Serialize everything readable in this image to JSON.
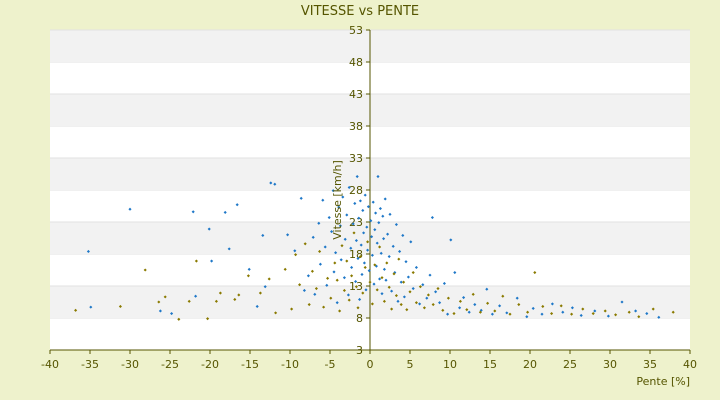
{
  "chart_data": {
    "type": "scatter",
    "title": "VITESSE vs PENTE",
    "xlabel": "Pente [%]",
    "ylabel": "Vitesse [km/h]",
    "xlim": [
      -40,
      40
    ],
    "ylim": [
      3,
      53
    ],
    "x_ticks": [
      "-40",
      "-35",
      "-30",
      "-25",
      "-20",
      "-15",
      "-10",
      "-5",
      "0",
      "5",
      "10",
      "15",
      "20",
      "25",
      "30",
      "35",
      "40"
    ],
    "y_ticks": [
      "3",
      "8",
      "13",
      "18",
      "23",
      "28",
      "33",
      "38",
      "43",
      "48",
      "53"
    ],
    "grid": "horizontal bands",
    "colors": {
      "series_a": "#1f78c8",
      "series_b": "#8a7a00",
      "background": "#eef2cc",
      "band": "#f2f2f2",
      "axis": "#555500"
    },
    "series": [
      {
        "color": "#1f78c8",
        "points": [
          [
            -35.2,
            18.4
          ],
          [
            -34.9,
            9.7
          ],
          [
            -30,
            25
          ],
          [
            -26.2,
            9.1
          ],
          [
            -24.8,
            8.7
          ],
          [
            -22.1,
            24.6
          ],
          [
            -21.8,
            11.4
          ],
          [
            -20.1,
            21.9
          ],
          [
            -19.8,
            16.9
          ],
          [
            -18.1,
            24.5
          ],
          [
            -17.6,
            18.8
          ],
          [
            -16.6,
            25.7
          ],
          [
            -15.1,
            15.6
          ],
          [
            -14.1,
            9.8
          ],
          [
            -13.4,
            20.9
          ],
          [
            -13.1,
            12.9
          ],
          [
            -12.4,
            29.1
          ],
          [
            -11.9,
            28.9
          ],
          [
            -10.3,
            21
          ],
          [
            -9.4,
            18.5
          ],
          [
            -8.6,
            26.7
          ],
          [
            -8.2,
            12.3
          ],
          [
            -7.7,
            14.6
          ],
          [
            -7.1,
            20.6
          ],
          [
            -6.9,
            11.7
          ],
          [
            -6.4,
            22.8
          ],
          [
            -6.2,
            16.4
          ],
          [
            -5.9,
            26.4
          ],
          [
            -5.6,
            19.1
          ],
          [
            -5.4,
            13.1
          ],
          [
            -5.1,
            23.7
          ],
          [
            -4.8,
            21.5
          ],
          [
            -4.6,
            27.9
          ],
          [
            -4.5,
            15.2
          ],
          [
            -4.3,
            18.2
          ],
          [
            -4.1,
            10.4
          ],
          [
            -3.9,
            25.3
          ],
          [
            -3.7,
            22.4
          ],
          [
            -3.6,
            17.1
          ],
          [
            -3.4,
            26.9
          ],
          [
            -3.2,
            14.3
          ],
          [
            -3.1,
            20.3
          ],
          [
            -2.9,
            24.1
          ],
          [
            -2.7,
            11.6
          ],
          [
            -2.6,
            28.4
          ],
          [
            -2.4,
            18.9
          ],
          [
            -2.3,
            15.9
          ],
          [
            -2.1,
            22.7
          ],
          [
            -1.9,
            25.9
          ],
          [
            -1.8,
            13.7
          ],
          [
            -1.7,
            20.1
          ],
          [
            -1.6,
            30.1
          ],
          [
            -1.5,
            17.3
          ],
          [
            -1.4,
            23.6
          ],
          [
            -1.3,
            10.9
          ],
          [
            -1.2,
            26.3
          ],
          [
            -1.1,
            19.4
          ],
          [
            -1.0,
            14.8
          ],
          [
            -0.9,
            24.8
          ],
          [
            -0.8,
            21.3
          ],
          [
            -0.7,
            16.6
          ],
          [
            -0.6,
            27.2
          ],
          [
            -0.5,
            12.4
          ],
          [
            -0.4,
            22.2
          ],
          [
            -0.3,
            18.6
          ],
          [
            -0.2,
            25.4
          ],
          [
            -0.1,
            15.4
          ],
          [
            0.1,
            23.2
          ],
          [
            0.2,
            20.7
          ],
          [
            0.3,
            17.8
          ],
          [
            0.4,
            26.1
          ],
          [
            0.5,
            13.3
          ],
          [
            0.6,
            21.8
          ],
          [
            0.7,
            24.4
          ],
          [
            0.8,
            16.1
          ],
          [
            0.9,
            19.7
          ],
          [
            1.0,
            30.1
          ],
          [
            1.1,
            22.9
          ],
          [
            1.2,
            14.1
          ],
          [
            1.3,
            25.1
          ],
          [
            1.4,
            18.1
          ],
          [
            1.5,
            11.8
          ],
          [
            1.6,
            23.9
          ],
          [
            1.7,
            20.4
          ],
          [
            1.8,
            15.6
          ],
          [
            1.9,
            26.6
          ],
          [
            2.0,
            13.9
          ],
          [
            2.2,
            21.1
          ],
          [
            2.4,
            17.6
          ],
          [
            2.5,
            24.2
          ],
          [
            2.7,
            12.2
          ],
          [
            2.9,
            19.2
          ],
          [
            3.1,
            15.1
          ],
          [
            3.3,
            22.6
          ],
          [
            3.5,
            10.6
          ],
          [
            3.7,
            18.4
          ],
          [
            3.9,
            13.6
          ],
          [
            4.1,
            20.9
          ],
          [
            4.3,
            11.3
          ],
          [
            4.5,
            16.8
          ],
          [
            4.8,
            14.4
          ],
          [
            5.1,
            19.9
          ],
          [
            5.4,
            12.6
          ],
          [
            5.8,
            15.9
          ],
          [
            6.2,
            10.2
          ],
          [
            6.6,
            13.2
          ],
          [
            7.1,
            11.1
          ],
          [
            7.5,
            14.7
          ],
          [
            7.8,
            23.7
          ],
          [
            8.2,
            12.1
          ],
          [
            8.7,
            10.4
          ],
          [
            9.3,
            13.4
          ],
          [
            9.7,
            8.6
          ],
          [
            10.1,
            20.2
          ],
          [
            10.6,
            15.1
          ],
          [
            11.2,
            9.6
          ],
          [
            11.7,
            11.2
          ],
          [
            12.4,
            8.9
          ],
          [
            13.1,
            10.1
          ],
          [
            13.9,
            9.2
          ],
          [
            14.6,
            12.5
          ],
          [
            15.3,
            8.6
          ],
          [
            16.2,
            9.9
          ],
          [
            17.1,
            8.8
          ],
          [
            18.4,
            11.1
          ],
          [
            19.6,
            8.2
          ],
          [
            20.4,
            9.5
          ],
          [
            21.5,
            8.6
          ],
          [
            22.8,
            10.2
          ],
          [
            24.1,
            8.9
          ],
          [
            25.3,
            9.6
          ],
          [
            26.4,
            8.4
          ],
          [
            28.1,
            9.1
          ],
          [
            29.8,
            8.3
          ],
          [
            31.5,
            10.5
          ],
          [
            33.2,
            9.1
          ],
          [
            34.6,
            8.7
          ],
          [
            36.1,
            8.1
          ]
        ]
      },
      {
        "color": "#8a7a00",
        "points": [
          [
            -36.8,
            9.2
          ],
          [
            -31.2,
            9.8
          ],
          [
            -28.1,
            15.5
          ],
          [
            -26.4,
            10.5
          ],
          [
            -25.6,
            11.3
          ],
          [
            -23.9,
            7.8
          ],
          [
            -22.6,
            10.6
          ],
          [
            -21.7,
            16.9
          ],
          [
            -20.3,
            7.9
          ],
          [
            -19.2,
            10.6
          ],
          [
            -18.7,
            11.9
          ],
          [
            -16.9,
            10.9
          ],
          [
            -16.4,
            11.6
          ],
          [
            -15.2,
            14.6
          ],
          [
            -13.7,
            11.9
          ],
          [
            -12.6,
            14.1
          ],
          [
            -11.8,
            8.8
          ],
          [
            -10.6,
            15.6
          ],
          [
            -9.8,
            9.4
          ],
          [
            -9.3,
            17.9
          ],
          [
            -8.8,
            13.2
          ],
          [
            -8.1,
            19.6
          ],
          [
            -7.6,
            10.1
          ],
          [
            -7.2,
            15.3
          ],
          [
            -6.7,
            12.6
          ],
          [
            -6.3,
            18.4
          ],
          [
            -5.8,
            9.7
          ],
          [
            -5.3,
            14.2
          ],
          [
            -4.9,
            11.1
          ],
          [
            -4.4,
            16.6
          ],
          [
            -4.1,
            13.9
          ],
          [
            -3.8,
            9.1
          ],
          [
            -3.5,
            19.3
          ],
          [
            -3.2,
            12.3
          ],
          [
            -2.9,
            16.9
          ],
          [
            -2.6,
            10.8
          ],
          [
            -2.3,
            14.6
          ],
          [
            -2.0,
            21.3
          ],
          [
            -1.7,
            12.9
          ],
          [
            -1.5,
            9.6
          ],
          [
            -1.2,
            17.6
          ],
          [
            -0.9,
            11.9
          ],
          [
            -0.6,
            15.9
          ],
          [
            -0.3,
            19.9
          ],
          [
            0.0,
            13.6
          ],
          [
            0.3,
            10.2
          ],
          [
            0.6,
            16.3
          ],
          [
            0.9,
            12.4
          ],
          [
            1.2,
            19.1
          ],
          [
            1.5,
            14.3
          ],
          [
            1.8,
            10.6
          ],
          [
            2.1,
            16.6
          ],
          [
            2.4,
            12.8
          ],
          [
            2.7,
            9.4
          ],
          [
            3.0,
            14.9
          ],
          [
            3.3,
            11.5
          ],
          [
            3.6,
            17.2
          ],
          [
            3.9,
            10.1
          ],
          [
            4.2,
            13.6
          ],
          [
            4.6,
            9.3
          ],
          [
            5.0,
            12.1
          ],
          [
            5.4,
            15.1
          ],
          [
            5.8,
            10.4
          ],
          [
            6.3,
            12.9
          ],
          [
            6.8,
            9.6
          ],
          [
            7.3,
            11.6
          ],
          [
            7.9,
            10.1
          ],
          [
            8.5,
            12.6
          ],
          [
            9.1,
            9.2
          ],
          [
            9.8,
            11.1
          ],
          [
            10.5,
            8.7
          ],
          [
            11.3,
            10.6
          ],
          [
            12.1,
            9.3
          ],
          [
            12.9,
            11.7
          ],
          [
            13.8,
            8.9
          ],
          [
            14.7,
            10.3
          ],
          [
            15.6,
            9.1
          ],
          [
            16.6,
            11.4
          ],
          [
            17.5,
            8.6
          ],
          [
            18.6,
            10.1
          ],
          [
            19.7,
            8.9
          ],
          [
            20.6,
            15.1
          ],
          [
            21.6,
            9.8
          ],
          [
            22.7,
            8.7
          ],
          [
            23.9,
            9.9
          ],
          [
            25.2,
            8.6
          ],
          [
            26.6,
            9.4
          ],
          [
            27.9,
            8.7
          ],
          [
            29.4,
            9.1
          ],
          [
            30.7,
            8.5
          ],
          [
            32.4,
            8.9
          ],
          [
            33.6,
            8.2
          ],
          [
            35.4,
            9.4
          ],
          [
            37.9,
            8.9
          ]
        ]
      }
    ]
  }
}
